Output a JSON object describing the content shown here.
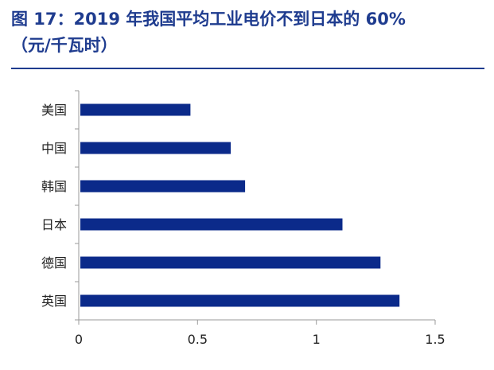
{
  "header": {
    "title_line1": "图 17：2019 年我国平均工业电价不到日本的 60%",
    "title_line2": "（元/千瓦时）"
  },
  "colors": {
    "title": "#1f3c8f",
    "bar": "#0b2a8a",
    "axis": "#9a9a9a"
  },
  "chart_data": {
    "type": "bar",
    "orientation": "horizontal",
    "categories": [
      "美国",
      "中国",
      "韩国",
      "日本",
      "德国",
      "英国"
    ],
    "values": [
      0.47,
      0.64,
      0.7,
      1.11,
      1.27,
      1.35
    ],
    "xlim": [
      0,
      1.5
    ],
    "xticks": [
      "0",
      "0.5",
      "1",
      "1.5"
    ],
    "xtick_values": [
      0,
      0.5,
      1,
      1.5
    ],
    "grid": false,
    "legend": "none"
  }
}
